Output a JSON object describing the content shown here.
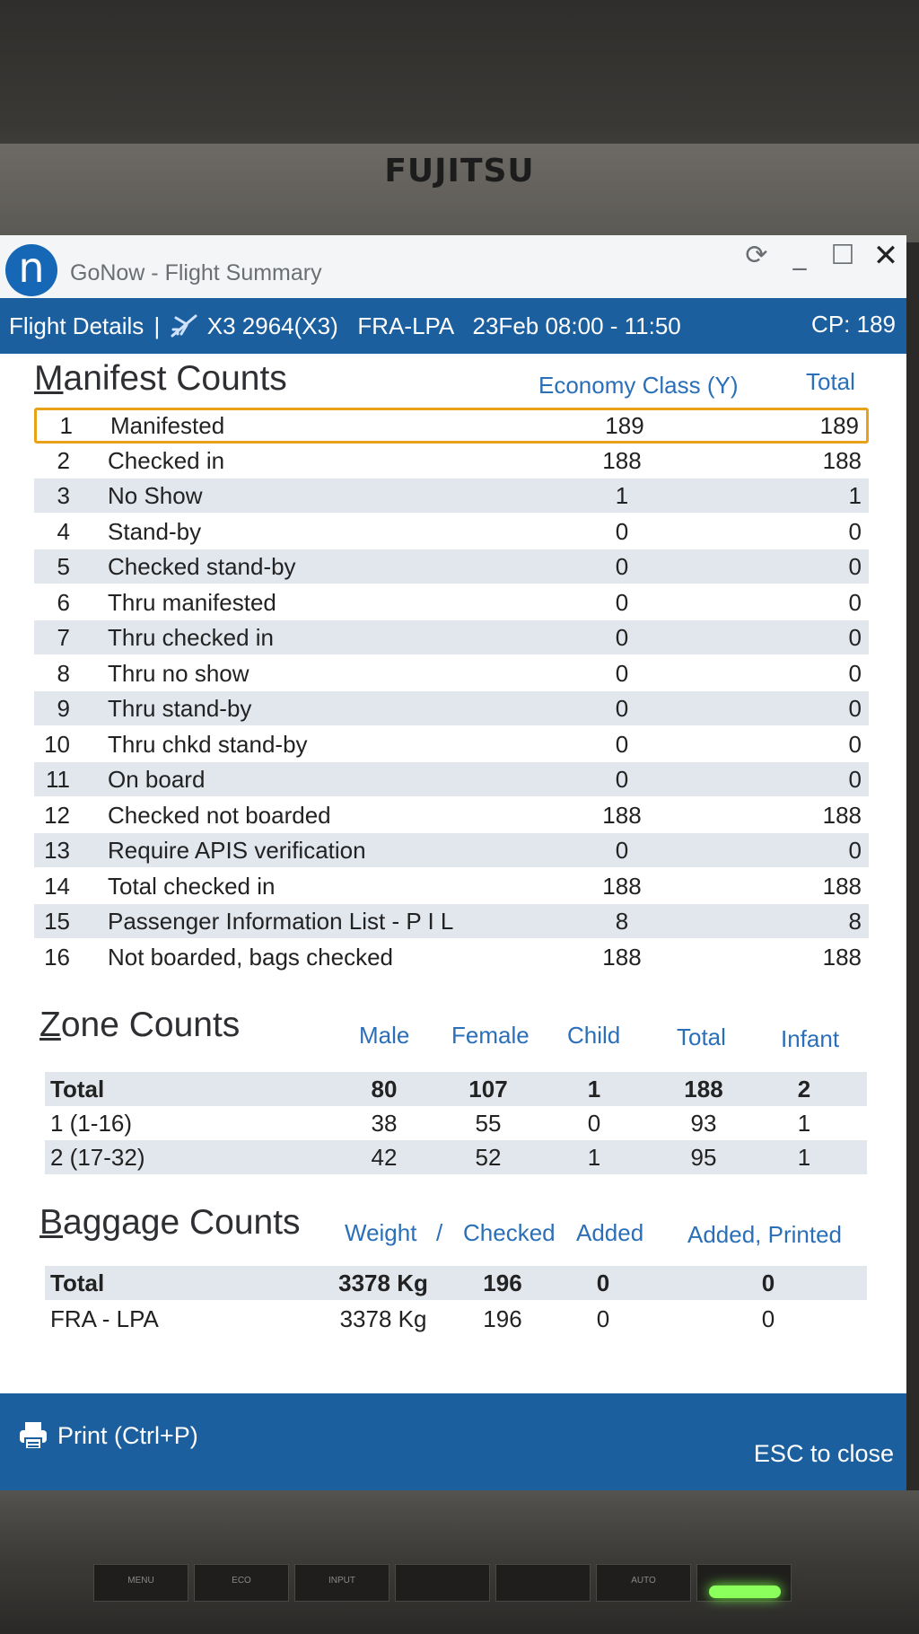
{
  "monitor": {
    "brand": "FUJITSU",
    "buttons": [
      "MENU",
      "ECO",
      "INPUT",
      "",
      "",
      "AUTO",
      ""
    ]
  },
  "window": {
    "title": "GoNow - Flight Summary",
    "logo_letter": "n",
    "controls": {
      "refresh": "⟳",
      "minimize": "_",
      "maximize": "☐",
      "close": "✕"
    }
  },
  "header": {
    "section": "Flight Details",
    "flight": "X3 2964(X3)",
    "route": "FRA-LPA",
    "schedule": "23Feb 08:00 - 11:50",
    "cp": "CP: 189"
  },
  "manifest": {
    "title_first": "M",
    "title_rest": "anifest Counts",
    "col_economy": "Economy Class (Y)",
    "col_total": "Total",
    "rows": [
      {
        "n": "1",
        "label": "Manifested",
        "y": "189",
        "total": "189"
      },
      {
        "n": "2",
        "label": "Checked in",
        "y": "188",
        "total": "188"
      },
      {
        "n": "3",
        "label": "No Show",
        "y": "1",
        "total": "1"
      },
      {
        "n": "4",
        "label": "Stand-by",
        "y": "0",
        "total": "0"
      },
      {
        "n": "5",
        "label": "Checked stand-by",
        "y": "0",
        "total": "0"
      },
      {
        "n": "6",
        "label": "Thru manifested",
        "y": "0",
        "total": "0"
      },
      {
        "n": "7",
        "label": "Thru checked in",
        "y": "0",
        "total": "0"
      },
      {
        "n": "8",
        "label": "Thru no show",
        "y": "0",
        "total": "0"
      },
      {
        "n": "9",
        "label": "Thru stand-by",
        "y": "0",
        "total": "0"
      },
      {
        "n": "10",
        "label": "Thru chkd stand-by",
        "y": "0",
        "total": "0"
      },
      {
        "n": "11",
        "label": "On board",
        "y": "0",
        "total": "0"
      },
      {
        "n": "12",
        "label": "Checked not boarded",
        "y": "188",
        "total": "188"
      },
      {
        "n": "13",
        "label": "Require APIS verification",
        "y": "0",
        "total": "0"
      },
      {
        "n": "14",
        "label": "Total checked in",
        "y": "188",
        "total": "188"
      },
      {
        "n": "15",
        "label": "Passenger Information List - P I L",
        "y": "8",
        "total": "8"
      },
      {
        "n": "16",
        "label": "Not boarded, bags checked",
        "y": "188",
        "total": "188"
      }
    ]
  },
  "zone": {
    "title_first": "Z",
    "title_rest": "one Counts",
    "columns": [
      "Male",
      "Female",
      "Child",
      "Total",
      "Infant"
    ],
    "rows": [
      {
        "zone": "Total",
        "male": "80",
        "female": "107",
        "child": "1",
        "total": "188",
        "infant": "2"
      },
      {
        "zone": "1 (1-16)",
        "male": "38",
        "female": "55",
        "child": "0",
        "total": "93",
        "infant": "1"
      },
      {
        "zone": "2 (17-32)",
        "male": "42",
        "female": "52",
        "child": "1",
        "total": "95",
        "infant": "1"
      }
    ]
  },
  "baggage": {
    "title_first": "B",
    "title_rest": "aggage Counts",
    "columns": [
      "Weight",
      "/",
      "Checked",
      "Added",
      "Added, Printed"
    ],
    "rows": [
      {
        "leg": "Total",
        "weight": "3378 Kg",
        "checked": "196",
        "added": "0",
        "printed": "0"
      },
      {
        "leg": "FRA - LPA",
        "weight": "3378 Kg",
        "checked": "196",
        "added": "0",
        "printed": "0"
      }
    ]
  },
  "footer": {
    "print": "Print (Ctrl+P)",
    "esc": "ESC to close"
  },
  "colors": {
    "accent": "#1c5f9e",
    "header_text": "#2a6fb8",
    "highlight": "#e8a21a",
    "row_alt": "#e2e7ee"
  }
}
